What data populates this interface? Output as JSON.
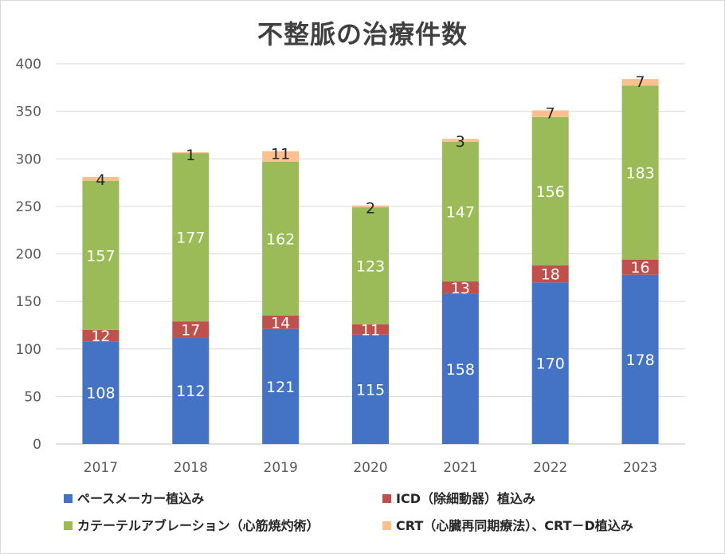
{
  "chart_data": {
    "type": "bar",
    "stacked": true,
    "title": "不整脈の治療件数",
    "xlabel": "",
    "ylabel": "",
    "ylim": [
      0,
      400
    ],
    "yticks": [
      0,
      50,
      100,
      150,
      200,
      250,
      300,
      350,
      400
    ],
    "grid": true,
    "legend_position": "bottom",
    "categories": [
      "2017",
      "2018",
      "2019",
      "2020",
      "2021",
      "2022",
      "2023"
    ],
    "series": [
      {
        "name": "ペースメーカー植込み",
        "color": "#4472c4",
        "label_color": "#ffffff",
        "values": [
          108,
          112,
          121,
          115,
          158,
          170,
          178
        ]
      },
      {
        "name": "ICD（除細動器）植込み",
        "color": "#c0504d",
        "label_color": "#ffffff",
        "values": [
          12,
          17,
          14,
          11,
          13,
          18,
          16
        ]
      },
      {
        "name": "カテーテルアブレーション（心筋焼灼術）",
        "color": "#9bbb59",
        "label_color": "#ffffff",
        "values": [
          157,
          177,
          162,
          123,
          147,
          156,
          183
        ]
      },
      {
        "name": "CRT（心臓再同期療法）、CRT－D植込み",
        "color": "#fac090",
        "label_color": "#262626",
        "values": [
          4,
          1,
          11,
          2,
          3,
          7,
          7
        ]
      }
    ]
  }
}
